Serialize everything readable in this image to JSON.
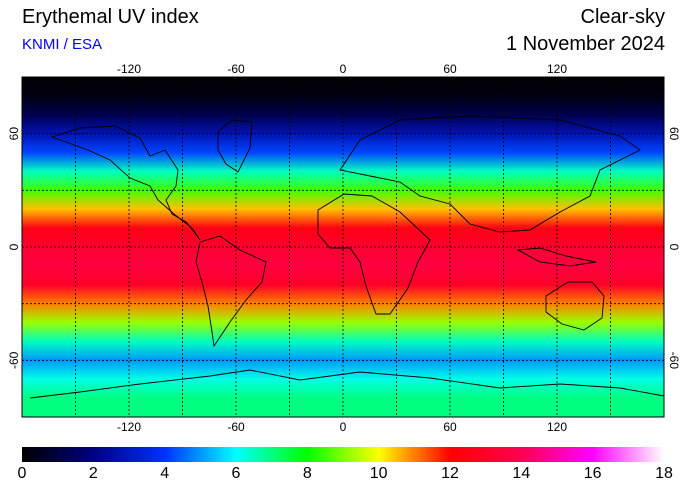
{
  "header": {
    "title": "Erythemal UV index",
    "source": "KNMI / ESA",
    "mode": "Clear-sky",
    "date": "1 November 2024"
  },
  "map": {
    "lon_ticks": [
      "-120",
      "-60",
      "0",
      "60",
      "120"
    ],
    "lat_ticks": [
      "60",
      "0",
      "-60"
    ],
    "lon_values": [
      -120,
      -60,
      0,
      60,
      120
    ],
    "lat_values": [
      60,
      0,
      -60
    ],
    "extent": {
      "lon": [
        -180,
        180
      ],
      "lat": [
        -90,
        90
      ]
    },
    "grid_lon": [
      -150,
      -120,
      -90,
      -60,
      -30,
      0,
      30,
      60,
      90,
      120,
      150
    ],
    "grid_lat": [
      60,
      30,
      0,
      -30,
      -60
    ],
    "uv_profile": [
      {
        "lat": 90,
        "uv": 0
      },
      {
        "lat": 80,
        "uv": 0.3
      },
      {
        "lat": 70,
        "uv": 1.2
      },
      {
        "lat": 60,
        "uv": 2.8
      },
      {
        "lat": 50,
        "uv": 4.2
      },
      {
        "lat": 40,
        "uv": 6.5
      },
      {
        "lat": 30,
        "uv": 8.5
      },
      {
        "lat": 20,
        "uv": 10.5
      },
      {
        "lat": 10,
        "uv": 12.5
      },
      {
        "lat": 0,
        "uv": 13.2
      },
      {
        "lat": -10,
        "uv": 13.6
      },
      {
        "lat": -20,
        "uv": 13
      },
      {
        "lat": -30,
        "uv": 11
      },
      {
        "lat": -40,
        "uv": 9.2
      },
      {
        "lat": -50,
        "uv": 6.5
      },
      {
        "lat": -60,
        "uv": 5
      },
      {
        "lat": -70,
        "uv": 6.2
      },
      {
        "lat": -80,
        "uv": 7
      },
      {
        "lat": -90,
        "uv": 7
      }
    ]
  },
  "colorbar": {
    "ticks": [
      "0",
      "2",
      "4",
      "6",
      "8",
      "10",
      "12",
      "14",
      "16",
      "18"
    ],
    "min": 0,
    "max": 18,
    "stops": [
      {
        "v": 0,
        "color": "#000000"
      },
      {
        "v": 2,
        "color": "#000080"
      },
      {
        "v": 4,
        "color": "#0030ff"
      },
      {
        "v": 6,
        "color": "#00ffff"
      },
      {
        "v": 8,
        "color": "#00ff00"
      },
      {
        "v": 10,
        "color": "#ffff00"
      },
      {
        "v": 12,
        "color": "#ff0000"
      },
      {
        "v": 14,
        "color": "#ff0050"
      },
      {
        "v": 16,
        "color": "#ff00ff"
      },
      {
        "v": 18,
        "color": "#ffffff"
      }
    ]
  }
}
